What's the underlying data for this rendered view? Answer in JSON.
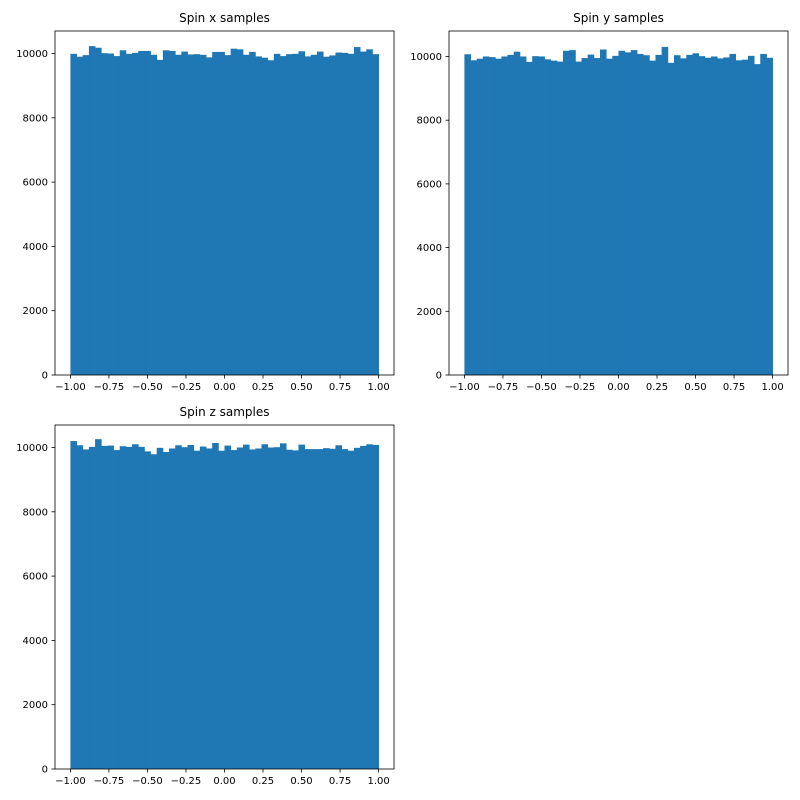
{
  "figure": {
    "background": "#ffffff"
  },
  "chart_data": [
    {
      "type": "bar",
      "title": "Spin x samples",
      "bar_color": "#1f77b4",
      "x_range": [
        -1.0,
        1.0
      ],
      "xlim": [
        -1.1,
        1.1
      ],
      "ylim": [
        0,
        10700
      ],
      "xticks": [
        -1.0,
        -0.75,
        -0.5,
        -0.25,
        0.0,
        0.25,
        0.5,
        0.75,
        1.0
      ],
      "xtick_labels": [
        "−1.00",
        "−0.75",
        "−0.50",
        "−0.25",
        "0.00",
        "0.25",
        "0.50",
        "0.75",
        "1.00"
      ],
      "yticks": [
        0,
        2000,
        4000,
        6000,
        8000,
        10000
      ],
      "ytick_labels": [
        "0",
        "2000",
        "4000",
        "6000",
        "8000",
        "10000"
      ],
      "values": [
        9990,
        9900,
        9950,
        10230,
        10180,
        10010,
        10000,
        9920,
        10100,
        9990,
        10020,
        10080,
        10080,
        9960,
        9800,
        10100,
        10080,
        9960,
        10060,
        9970,
        9980,
        9960,
        9880,
        10050,
        10050,
        9950,
        10150,
        10130,
        9960,
        10050,
        9910,
        9870,
        9790,
        9990,
        9920,
        9980,
        9990,
        10070,
        9910,
        9960,
        10060,
        9900,
        9940,
        10030,
        10020,
        9990,
        10200,
        10060,
        10130,
        9980
      ]
    },
    {
      "type": "bar",
      "title": "Spin y samples",
      "bar_color": "#1f77b4",
      "x_range": [
        -1.0,
        1.0
      ],
      "xlim": [
        -1.1,
        1.1
      ],
      "ylim": [
        0,
        10800
      ],
      "xticks": [
        -1.0,
        -0.75,
        -0.5,
        -0.25,
        0.0,
        0.25,
        0.5,
        0.75,
        1.0
      ],
      "xtick_labels": [
        "−1.00",
        "−0.75",
        "−0.50",
        "−0.25",
        "0.00",
        "0.25",
        "0.50",
        "0.75",
        "1.00"
      ],
      "yticks": [
        0,
        2000,
        4000,
        6000,
        8000,
        10000
      ],
      "ytick_labels": [
        "0",
        "2000",
        "4000",
        "6000",
        "8000",
        "10000"
      ],
      "values": [
        10070,
        9880,
        9930,
        10000,
        9980,
        9930,
        10000,
        10050,
        10150,
        10000,
        9830,
        10010,
        10000,
        9910,
        9870,
        9840,
        10180,
        10200,
        9840,
        9950,
        10060,
        9950,
        10220,
        9930,
        10020,
        10180,
        10130,
        10200,
        10080,
        10040,
        9870,
        10050,
        10300,
        9800,
        10040,
        9940,
        10050,
        10100,
        10010,
        9960,
        10000,
        9940,
        9970,
        10080,
        9880,
        9900,
        10020,
        9760,
        10080,
        9960
      ]
    },
    {
      "type": "bar",
      "title": "Spin z samples",
      "bar_color": "#1f77b4",
      "x_range": [
        -1.0,
        1.0
      ],
      "xlim": [
        -1.1,
        1.1
      ],
      "ylim": [
        0,
        10700
      ],
      "xticks": [
        -1.0,
        -0.75,
        -0.5,
        -0.25,
        0.0,
        0.25,
        0.5,
        0.75,
        1.0
      ],
      "xtick_labels": [
        "−1.00",
        "−0.75",
        "−0.50",
        "−0.25",
        "0.00",
        "0.25",
        "0.50",
        "0.75",
        "1.00"
      ],
      "yticks": [
        0,
        2000,
        4000,
        6000,
        8000,
        10000
      ],
      "ytick_labels": [
        "0",
        "2000",
        "4000",
        "6000",
        "8000",
        "10000"
      ],
      "values": [
        10200,
        10070,
        9940,
        10020,
        10260,
        10050,
        10060,
        9920,
        10040,
        10020,
        10100,
        10020,
        9880,
        9790,
        9990,
        9860,
        9970,
        10070,
        10010,
        10080,
        9900,
        10030,
        9970,
        10140,
        9900,
        10060,
        9920,
        10000,
        10090,
        9940,
        9970,
        10100,
        10000,
        10010,
        10130,
        9930,
        9910,
        10090,
        9950,
        9950,
        9950,
        9980,
        9960,
        10070,
        9950,
        9900,
        9990,
        10050,
        10100,
        10080
      ]
    }
  ]
}
